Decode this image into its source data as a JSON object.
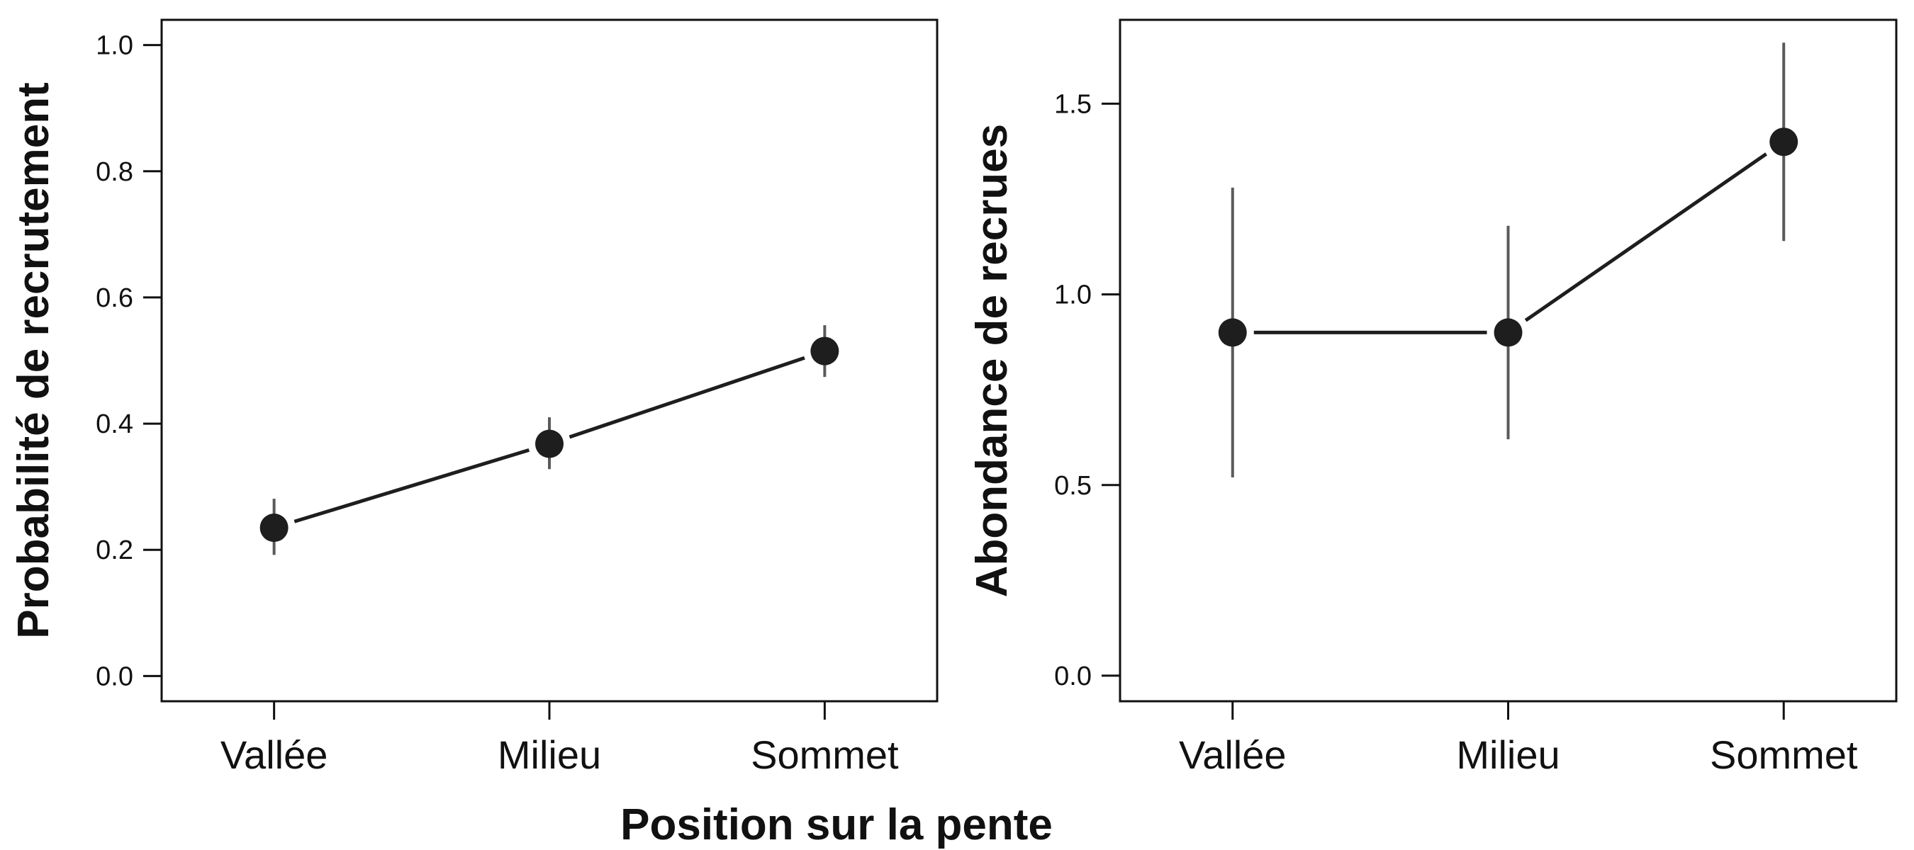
{
  "colors": {
    "ink": "#1e1e1e",
    "error_bar": "#5a5a5a",
    "frame": "#111111",
    "background": "#ffffff"
  },
  "shared_xlabel": "Position sur la pente",
  "chart_data": [
    {
      "type": "line",
      "title": "",
      "xlabel": "",
      "ylabel": "Probabilité de recrutement",
      "categories": [
        "Vallée",
        "Milieu",
        "Sommet"
      ],
      "series": [
        {
          "values": [
            0.235,
            0.368,
            0.515
          ],
          "lower": [
            0.192,
            0.328,
            0.474
          ],
          "upper": [
            0.281,
            0.41,
            0.556
          ]
        }
      ],
      "ylim": [
        -0.04,
        1.04
      ],
      "yticks": [
        0.0,
        0.2,
        0.4,
        0.6,
        0.8,
        1.0
      ],
      "ytick_labels": [
        "0.0",
        "0.2",
        "0.4",
        "0.6",
        "0.8",
        "1.0"
      ],
      "grid": false,
      "legend": "none"
    },
    {
      "type": "line",
      "title": "",
      "xlabel": "",
      "ylabel": "Abondance de recrues",
      "categories": [
        "Vallée",
        "Milieu",
        "Sommet"
      ],
      "series": [
        {
          "values": [
            0.9,
            0.9,
            1.4
          ],
          "lower": [
            0.52,
            0.62,
            1.14
          ],
          "upper": [
            1.28,
            1.18,
            1.66
          ]
        }
      ],
      "ylim": [
        -0.067,
        1.72
      ],
      "yticks": [
        0.0,
        0.5,
        1.0,
        1.5
      ],
      "ytick_labels": [
        "0.0",
        "0.5",
        "1.0",
        "1.5"
      ],
      "grid": false,
      "legend": "none"
    }
  ]
}
